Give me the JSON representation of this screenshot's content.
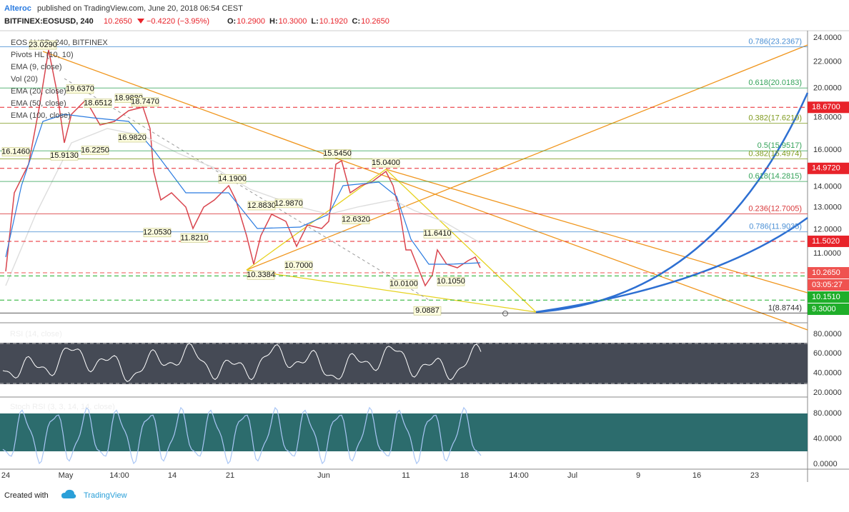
{
  "header": {
    "author": "Alteroc",
    "published": "published on TradingView.com, June 20, 2018 06:54 CEST"
  },
  "ticker": {
    "symbol": "BITFINEX:EOSUSD, 240",
    "last": "10.2650",
    "change": "−0.4220 (−3.95%)",
    "ohlc": [
      {
        "label": "O:",
        "value": "10.2900"
      },
      {
        "label": "H:",
        "value": "10.3000"
      },
      {
        "label": "L:",
        "value": "10.1920"
      },
      {
        "label": "C:",
        "value": "10.2650"
      }
    ]
  },
  "main_pane": {
    "legend": [
      "EOS / USD, 240, BITFINEX",
      "Pivots HL (10, 10)",
      "EMA (9, close)",
      "Vol (20)",
      "EMA (20, close)",
      "EMA (50, close)",
      "EMA (100, close)"
    ],
    "price_axis": [
      {
        "value": 24,
        "label": "24.0000"
      },
      {
        "value": 22,
        "label": "22.0000"
      },
      {
        "value": 20,
        "label": "20.0000"
      },
      {
        "value": 18,
        "label": "18.0000"
      },
      {
        "value": 16,
        "label": "16.0000"
      },
      {
        "value": 14,
        "label": "14.0000"
      },
      {
        "value": 13,
        "label": "13.0000"
      },
      {
        "value": 12,
        "label": "12.0000"
      },
      {
        "value": 11,
        "label": "11.0000"
      }
    ],
    "badges": [
      {
        "value": 18.67,
        "label": "18.6700",
        "color": "#e8232a"
      },
      {
        "value": 14.972,
        "label": "14.9720",
        "color": "#e8232a"
      },
      {
        "value": 11.502,
        "label": "11.5020",
        "color": "#e8232a"
      },
      {
        "value": 10.265,
        "label": "10.2650",
        "color": "#ef5350"
      },
      {
        "value": 10.151,
        "label": "10.1510",
        "color": "#1fae2a"
      },
      {
        "value": 9.3,
        "label": "9.3000",
        "color": "#1fae2a"
      }
    ],
    "countdown": "03:05:27",
    "fib_levels": [
      {
        "value": 23.2367,
        "label": "0.786(23.2367)",
        "color": "#4a8fd4"
      },
      {
        "value": 20.0183,
        "label": "0.618(20.0183)",
        "color": "#35a35a"
      },
      {
        "value": 17.6219,
        "label": "0.382(17.6219)",
        "color": "#7f9a1f"
      },
      {
        "value": 15.9517,
        "label": "0.5(15.9517)",
        "color": "#35a35a"
      },
      {
        "value": 15.4974,
        "label": "0.382(15.4974)",
        "color": "#7f9a1f"
      },
      {
        "value": 14.2815,
        "label": "0.618(14.2815)",
        "color": "#35a35a"
      },
      {
        "value": 12.7005,
        "label": "0.236(12.7005)",
        "color": "#d9383a"
      },
      {
        "value": 11.9035,
        "label": "0.786(11.9035)",
        "color": "#4a8fd4"
      },
      {
        "value": 8.8744,
        "label": "1(8.8744)",
        "color": "#333333"
      }
    ],
    "pivots": [
      {
        "value": 23.029,
        "label": "23.0290"
      },
      {
        "value": 19.637,
        "label": "19.6370"
      },
      {
        "value": 18.6512,
        "label": "18.6512"
      },
      {
        "value": 18.988,
        "label": "18.9880"
      },
      {
        "value": 18.747,
        "label": "18.7470"
      },
      {
        "value": 16.146,
        "label": "16.1460"
      },
      {
        "value": 15.913,
        "label": "15.9130"
      },
      {
        "value": 16.225,
        "label": "16.2250"
      },
      {
        "value": 16.982,
        "label": "16.9820"
      },
      {
        "value": 14.19,
        "label": "14.1900"
      },
      {
        "value": 12.053,
        "label": "12.0530"
      },
      {
        "value": 11.821,
        "label": "11.8210"
      },
      {
        "value": 12.883,
        "label": "12.8830"
      },
      {
        "value": 12.987,
        "label": "12.9870"
      },
      {
        "value": 10.3384,
        "label": "10.3384"
      },
      {
        "value": 10.7,
        "label": "10.7000"
      },
      {
        "value": 15.545,
        "label": "15.5450"
      },
      {
        "value": 15.04,
        "label": "15.0400"
      },
      {
        "value": 12.632,
        "label": "12.6320"
      },
      {
        "value": 11.641,
        "label": "11.6410"
      },
      {
        "value": 10.01,
        "label": "10.0100"
      },
      {
        "value": 10.105,
        "label": "10.1050"
      },
      {
        "value": 9.0887,
        "label": "9.0887"
      }
    ]
  },
  "rsi_pane": {
    "legend": "RSI (14, close)",
    "axis": [
      {
        "value": 80,
        "label": "80.0000"
      },
      {
        "value": 60,
        "label": "60.0000"
      },
      {
        "value": 40,
        "label": "40.0000"
      },
      {
        "value": 20,
        "label": "20.0000"
      }
    ]
  },
  "stoch_pane": {
    "legend": "Stoch RSI (3, 3, 14, 14, close)",
    "axis": [
      {
        "value": 80,
        "label": "80.0000"
      },
      {
        "value": 40,
        "label": "40.0000"
      },
      {
        "value": 0,
        "label": "0.0000"
      }
    ]
  },
  "time_axis": [
    "24",
    "May",
    "14:00",
    "14",
    "21",
    "Jun",
    "11",
    "18",
    "14:00",
    "Jul",
    "9",
    "16",
    "23"
  ],
  "footer": {
    "created": "Created with",
    "brand": "TradingView"
  }
}
